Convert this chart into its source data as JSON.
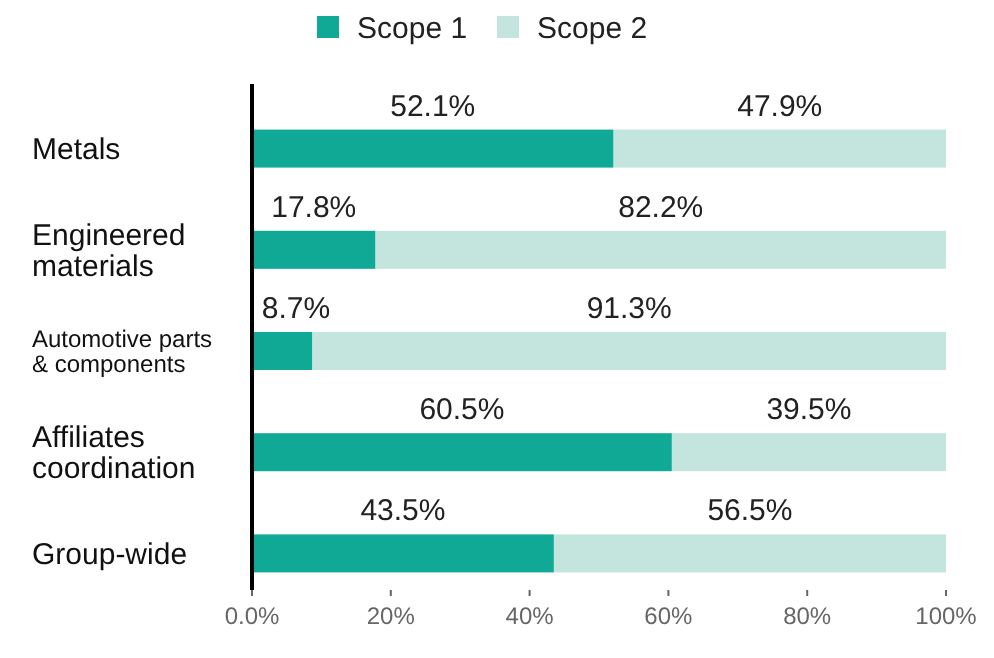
{
  "chart_data": {
    "type": "bar",
    "orientation": "horizontal",
    "stacked": true,
    "categories": [
      "Metals",
      "Engineered materials",
      "Automotive parts & components",
      "Affiliates coordination",
      "Group-wide"
    ],
    "series": [
      {
        "name": "Scope 1",
        "color": "#0fa996",
        "values": [
          52.1,
          17.8,
          8.7,
          60.5,
          43.5
        ],
        "value_labels": [
          "52.1%",
          "17.8%",
          "8.7%",
          "60.5%",
          "43.5%"
        ]
      },
      {
        "name": "Scope 2",
        "color": "#c3e5dd",
        "values": [
          47.9,
          82.2,
          91.3,
          39.5,
          56.5
        ],
        "value_labels": [
          "47.9%",
          "82.2%",
          "91.3%",
          "39.5%",
          "56.5%"
        ]
      }
    ],
    "xlim": [
      0,
      100
    ],
    "xticks": [
      {
        "value": 0,
        "label": "0.0%"
      },
      {
        "value": 20,
        "label": "20%"
      },
      {
        "value": 40,
        "label": "40%"
      },
      {
        "value": 60,
        "label": "60%"
      },
      {
        "value": 80,
        "label": "80%"
      },
      {
        "value": 100,
        "label": "100%"
      }
    ],
    "grid": false,
    "legend": "top"
  }
}
